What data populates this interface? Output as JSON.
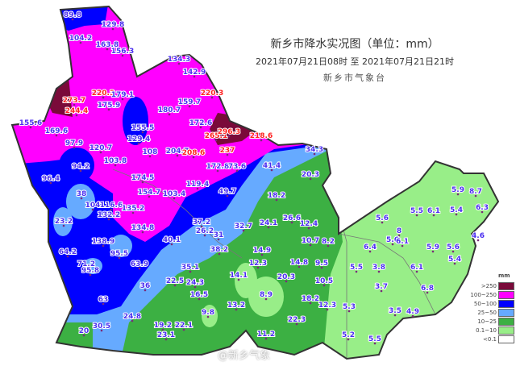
{
  "header": {
    "title": "新乡市降水实况图（单位：mm）",
    "period": "2021年07月21日08时  至  2021年07月21日21时",
    "agency": "新乡市气象台"
  },
  "legend": {
    "unit": "mm",
    "items": [
      {
        "label": ">250",
        "color": "#7a0a3a"
      },
      {
        "label": "100~250",
        "color": "#ff00ff"
      },
      {
        "label": "50~100",
        "color": "#0000ff"
      },
      {
        "label": "25~50",
        "color": "#66aaff"
      },
      {
        "label": "10~25",
        "color": "#3cb043"
      },
      {
        "label": "0.1~10",
        "color": "#98ee88"
      },
      {
        "label": "<0.1",
        "color": "#ffffff"
      }
    ]
  },
  "watermark": "@新乡气象",
  "stations": [
    {
      "value": "89.8"
    },
    {
      "value": "104.2"
    },
    {
      "value": "129.8"
    },
    {
      "value": "163.8"
    },
    {
      "value": "156.3"
    },
    {
      "value": "273.7",
      "red": true
    },
    {
      "value": "220.3",
      "red": true
    },
    {
      "value": "179.1"
    },
    {
      "value": "244.4",
      "red": true
    },
    {
      "value": "175.9"
    },
    {
      "value": "155.6"
    },
    {
      "value": "169.6"
    },
    {
      "value": "97.9"
    },
    {
      "value": "120.7"
    },
    {
      "value": "155.5"
    },
    {
      "value": "129.4"
    },
    {
      "value": "108"
    },
    {
      "value": "103.8"
    },
    {
      "value": "94.2"
    },
    {
      "value": "96.4"
    },
    {
      "value": "174.5"
    },
    {
      "value": "154.7"
    },
    {
      "value": "38"
    },
    {
      "value": "104"
    },
    {
      "value": "116.6"
    },
    {
      "value": "135.2"
    },
    {
      "value": "132.2"
    },
    {
      "value": "23.2"
    },
    {
      "value": "134.8"
    },
    {
      "value": "138.9"
    },
    {
      "value": "134.3"
    },
    {
      "value": "142.9"
    },
    {
      "value": "220.3",
      "red": true
    },
    {
      "value": "159.7"
    },
    {
      "value": "180.7"
    },
    {
      "value": "172.6"
    },
    {
      "value": "265.1",
      "red": true
    },
    {
      "value": "296.3",
      "red": true
    },
    {
      "value": "218.6",
      "red": true
    },
    {
      "value": "237",
      "red": true
    },
    {
      "value": "204.7"
    },
    {
      "value": "208.6",
      "red": true
    },
    {
      "value": "172.8"
    },
    {
      "value": "73.6"
    },
    {
      "value": "41.4"
    },
    {
      "value": "34.3"
    },
    {
      "value": "20.3"
    },
    {
      "value": "119.4"
    },
    {
      "value": "103.4"
    },
    {
      "value": "49.7"
    },
    {
      "value": "18.2"
    },
    {
      "value": "37.2"
    },
    {
      "value": "26.2"
    },
    {
      "value": "31"
    },
    {
      "value": "32.7"
    },
    {
      "value": "24.1"
    },
    {
      "value": "26.6"
    },
    {
      "value": "12.4"
    },
    {
      "value": "10.7"
    },
    {
      "value": "8.2"
    },
    {
      "value": "38.2"
    },
    {
      "value": "14.9"
    },
    {
      "value": "40.1"
    },
    {
      "value": "64.2"
    },
    {
      "value": "95.5"
    },
    {
      "value": "71.2"
    },
    {
      "value": "63.9"
    },
    {
      "value": "95.8"
    },
    {
      "value": "35.1"
    },
    {
      "value": "12.3"
    },
    {
      "value": "14.8"
    },
    {
      "value": "9.5"
    },
    {
      "value": "36"
    },
    {
      "value": "22.5"
    },
    {
      "value": "24.3"
    },
    {
      "value": "16.5"
    },
    {
      "value": "14.1"
    },
    {
      "value": "20.3"
    },
    {
      "value": "10.5"
    },
    {
      "value": "63"
    },
    {
      "value": "8.9"
    },
    {
      "value": "13.2"
    },
    {
      "value": "18.2"
    },
    {
      "value": "9.8"
    },
    {
      "value": "12.3"
    },
    {
      "value": "24.8"
    },
    {
      "value": "30.5"
    },
    {
      "value": "20"
    },
    {
      "value": "19.2"
    },
    {
      "value": "22.1"
    },
    {
      "value": "23.1"
    },
    {
      "value": "22.3"
    },
    {
      "value": "11.2"
    },
    {
      "value": "5.9"
    },
    {
      "value": "8.7"
    },
    {
      "value": "6.3"
    },
    {
      "value": "5.5"
    },
    {
      "value": "6.1"
    },
    {
      "value": "5.4"
    },
    {
      "value": "5.6"
    },
    {
      "value": "8"
    },
    {
      "value": "5.6"
    },
    {
      "value": "6.1"
    },
    {
      "value": "6.4"
    },
    {
      "value": "5.9"
    },
    {
      "value": "5.6"
    },
    {
      "value": "4.6"
    },
    {
      "value": "5.4"
    },
    {
      "value": "5.5"
    },
    {
      "value": "3.8"
    },
    {
      "value": "6.1"
    },
    {
      "value": "3.7"
    },
    {
      "value": "6.8"
    },
    {
      "value": "5.3"
    },
    {
      "value": "3.5"
    },
    {
      "value": "4.9"
    },
    {
      "value": "5.2"
    },
    {
      "value": "5.5"
    }
  ]
}
